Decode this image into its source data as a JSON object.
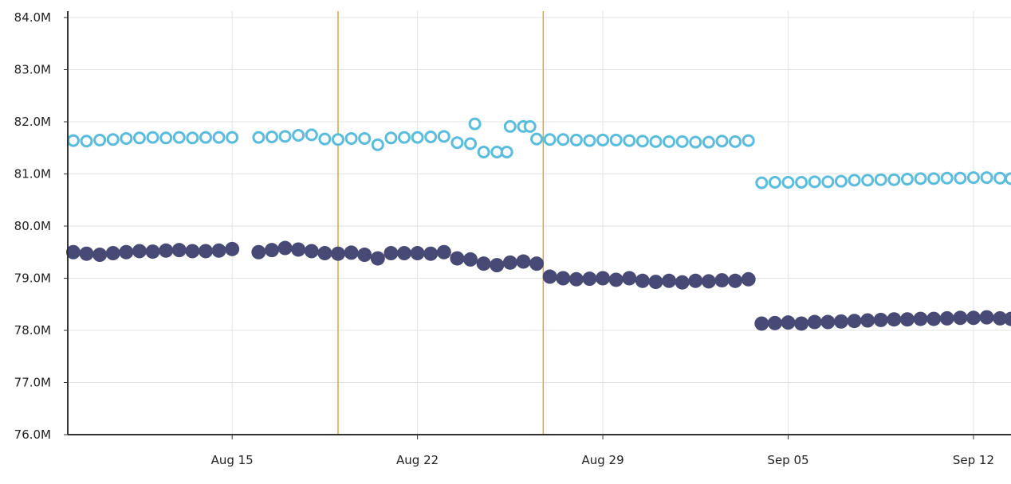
{
  "chart_data": {
    "type": "scatter",
    "title": "",
    "xlabel": "",
    "ylabel": "",
    "grid": true,
    "legend": "none",
    "x_domain": [
      "2025-08-08T19:00",
      "2025-09-13T10:00"
    ],
    "xlim": [
      "2025-08-08T19:00",
      "2025-09-13T10:00"
    ],
    "ylim": [
      76.0,
      84.0
    ],
    "y_unit": "M",
    "y_ticks": [
      {
        "value": 76.0,
        "label": "76.0M"
      },
      {
        "value": 77.0,
        "label": "77.0M"
      },
      {
        "value": 78.0,
        "label": "78.0M"
      },
      {
        "value": 79.0,
        "label": "79.0M"
      },
      {
        "value": 80.0,
        "label": "80.0M"
      },
      {
        "value": 81.0,
        "label": "81.0M"
      },
      {
        "value": 82.0,
        "label": "82.0M"
      },
      {
        "value": 83.0,
        "label": "83.0M"
      },
      {
        "value": 84.0,
        "label": "84.0M"
      }
    ],
    "x_ticks": [
      {
        "value": "2025-08-15",
        "label": "Aug 15"
      },
      {
        "value": "2025-08-22",
        "label": "Aug 22"
      },
      {
        "value": "2025-08-29",
        "label": "Aug 29"
      },
      {
        "value": "2025-09-05",
        "label": "Sep 05"
      },
      {
        "value": "2025-09-12",
        "label": "Sep 12"
      }
    ],
    "annotations": [
      {
        "type": "vertical-line",
        "x": "2025-08-19",
        "color": "#d4a640"
      },
      {
        "type": "vertical-line",
        "x": "2025-08-26T18:00",
        "color": "#d4a640"
      }
    ],
    "series": [
      {
        "color": "#5bbcdc",
        "marker": "open-circle",
        "points": [
          [
            "2025-08-09",
            81.64
          ],
          [
            "2025-08-09T12:00",
            81.63
          ],
          [
            "2025-08-10",
            81.65
          ],
          [
            "2025-08-10T12:00",
            81.66
          ],
          [
            "2025-08-11",
            81.68
          ],
          [
            "2025-08-11T12:00",
            81.69
          ],
          [
            "2025-08-12",
            81.7
          ],
          [
            "2025-08-12T12:00",
            81.69
          ],
          [
            "2025-08-13",
            81.7
          ],
          [
            "2025-08-13T12:00",
            81.69
          ],
          [
            "2025-08-14",
            81.7
          ],
          [
            "2025-08-14T12:00",
            81.7
          ],
          [
            "2025-08-15",
            81.7
          ],
          [
            "2025-08-16",
            81.7
          ],
          [
            "2025-08-16T12:00",
            81.71
          ],
          [
            "2025-08-17",
            81.72
          ],
          [
            "2025-08-17T12:00",
            81.74
          ],
          [
            "2025-08-18",
            81.75
          ],
          [
            "2025-08-18T12:00",
            81.67
          ],
          [
            "2025-08-19",
            81.66
          ],
          [
            "2025-08-19T12:00",
            81.68
          ],
          [
            "2025-08-20",
            81.68
          ],
          [
            "2025-08-20T12:00",
            81.56
          ],
          [
            "2025-08-21",
            81.69
          ],
          [
            "2025-08-21T12:00",
            81.7
          ],
          [
            "2025-08-22",
            81.7
          ],
          [
            "2025-08-22T12:00",
            81.71
          ],
          [
            "2025-08-23",
            81.72
          ],
          [
            "2025-08-23T12:00",
            81.6
          ],
          [
            "2025-08-24",
            81.58
          ],
          [
            "2025-08-24T04:00",
            81.96
          ],
          [
            "2025-08-24T12:00",
            81.42
          ],
          [
            "2025-08-25",
            81.42
          ],
          [
            "2025-08-25T09:00",
            81.42
          ],
          [
            "2025-08-25T12:00",
            81.91
          ],
          [
            "2025-08-26",
            81.91
          ],
          [
            "2025-08-26T06:00",
            81.91
          ],
          [
            "2025-08-26T12:00",
            81.67
          ],
          [
            "2025-08-27",
            81.66
          ],
          [
            "2025-08-27T12:00",
            81.66
          ],
          [
            "2025-08-28",
            81.65
          ],
          [
            "2025-08-28T12:00",
            81.64
          ],
          [
            "2025-08-29",
            81.65
          ],
          [
            "2025-08-29T12:00",
            81.65
          ],
          [
            "2025-08-30",
            81.64
          ],
          [
            "2025-08-30T12:00",
            81.63
          ],
          [
            "2025-08-31",
            81.62
          ],
          [
            "2025-08-31T12:00",
            81.62
          ],
          [
            "2025-09-01",
            81.62
          ],
          [
            "2025-09-01T12:00",
            81.61
          ],
          [
            "2025-09-02",
            81.61
          ],
          [
            "2025-09-02T12:00",
            81.63
          ],
          [
            "2025-09-03",
            81.62
          ],
          [
            "2025-09-03T12:00",
            81.64
          ],
          [
            "2025-09-04",
            80.83
          ],
          [
            "2025-09-04T12:00",
            80.84
          ],
          [
            "2025-09-05",
            80.84
          ],
          [
            "2025-09-05T12:00",
            80.84
          ],
          [
            "2025-09-06",
            80.85
          ],
          [
            "2025-09-06T12:00",
            80.85
          ],
          [
            "2025-09-07",
            80.86
          ],
          [
            "2025-09-07T12:00",
            80.88
          ],
          [
            "2025-09-08",
            80.88
          ],
          [
            "2025-09-08T12:00",
            80.89
          ],
          [
            "2025-09-09",
            80.89
          ],
          [
            "2025-09-09T12:00",
            80.9
          ],
          [
            "2025-09-10",
            80.91
          ],
          [
            "2025-09-10T12:00",
            80.91
          ],
          [
            "2025-09-11",
            80.92
          ],
          [
            "2025-09-11T12:00",
            80.92
          ],
          [
            "2025-09-12",
            80.93
          ],
          [
            "2025-09-12T12:00",
            80.93
          ],
          [
            "2025-09-13",
            80.92
          ],
          [
            "2025-09-13T10:00",
            80.91
          ]
        ]
      },
      {
        "color": "#474a75",
        "marker": "filled-circle",
        "points": [
          [
            "2025-08-09",
            79.5
          ],
          [
            "2025-08-09T12:00",
            79.47
          ],
          [
            "2025-08-10",
            79.45
          ],
          [
            "2025-08-10T12:00",
            79.48
          ],
          [
            "2025-08-11",
            79.5
          ],
          [
            "2025-08-11T12:00",
            79.52
          ],
          [
            "2025-08-12",
            79.51
          ],
          [
            "2025-08-12T12:00",
            79.53
          ],
          [
            "2025-08-13",
            79.54
          ],
          [
            "2025-08-13T12:00",
            79.52
          ],
          [
            "2025-08-14",
            79.52
          ],
          [
            "2025-08-14T12:00",
            79.53
          ],
          [
            "2025-08-15",
            79.56
          ],
          [
            "2025-08-16",
            79.5
          ],
          [
            "2025-08-16T12:00",
            79.54
          ],
          [
            "2025-08-17",
            79.58
          ],
          [
            "2025-08-17T12:00",
            79.55
          ],
          [
            "2025-08-18",
            79.52
          ],
          [
            "2025-08-18T12:00",
            79.48
          ],
          [
            "2025-08-19",
            79.47
          ],
          [
            "2025-08-19T12:00",
            79.49
          ],
          [
            "2025-08-20",
            79.45
          ],
          [
            "2025-08-20T12:00",
            79.38
          ],
          [
            "2025-08-21",
            79.48
          ],
          [
            "2025-08-21T12:00",
            79.48
          ],
          [
            "2025-08-22",
            79.48
          ],
          [
            "2025-08-22T12:00",
            79.47
          ],
          [
            "2025-08-23",
            79.5
          ],
          [
            "2025-08-23T12:00",
            79.38
          ],
          [
            "2025-08-24",
            79.36
          ],
          [
            "2025-08-24T12:00",
            79.28
          ],
          [
            "2025-08-25",
            79.25
          ],
          [
            "2025-08-25T12:00",
            79.3
          ],
          [
            "2025-08-26",
            79.32
          ],
          [
            "2025-08-26T12:00",
            79.28
          ],
          [
            "2025-08-27",
            79.03
          ],
          [
            "2025-08-27T12:00",
            79.0
          ],
          [
            "2025-08-28",
            78.98
          ],
          [
            "2025-08-28T12:00",
            78.99
          ],
          [
            "2025-08-29",
            79.0
          ],
          [
            "2025-08-29T12:00",
            78.97
          ],
          [
            "2025-08-30",
            79.0
          ],
          [
            "2025-08-30T12:00",
            78.95
          ],
          [
            "2025-08-31",
            78.93
          ],
          [
            "2025-08-31T12:00",
            78.95
          ],
          [
            "2025-09-01",
            78.92
          ],
          [
            "2025-09-01T12:00",
            78.95
          ],
          [
            "2025-09-02",
            78.94
          ],
          [
            "2025-09-02T12:00",
            78.96
          ],
          [
            "2025-09-03",
            78.95
          ],
          [
            "2025-09-03T12:00",
            78.98
          ],
          [
            "2025-09-04",
            78.13
          ],
          [
            "2025-09-04T12:00",
            78.14
          ],
          [
            "2025-09-05",
            78.15
          ],
          [
            "2025-09-05T12:00",
            78.13
          ],
          [
            "2025-09-06",
            78.16
          ],
          [
            "2025-09-06T12:00",
            78.16
          ],
          [
            "2025-09-07",
            78.17
          ],
          [
            "2025-09-07T12:00",
            78.18
          ],
          [
            "2025-09-08",
            78.19
          ],
          [
            "2025-09-08T12:00",
            78.2
          ],
          [
            "2025-09-09",
            78.21
          ],
          [
            "2025-09-09T12:00",
            78.21
          ],
          [
            "2025-09-10",
            78.22
          ],
          [
            "2025-09-10T12:00",
            78.22
          ],
          [
            "2025-09-11",
            78.23
          ],
          [
            "2025-09-11T12:00",
            78.24
          ],
          [
            "2025-09-12",
            78.24
          ],
          [
            "2025-09-12T12:00",
            78.25
          ],
          [
            "2025-09-13",
            78.23
          ],
          [
            "2025-09-13T10:00",
            78.22
          ]
        ]
      }
    ]
  }
}
